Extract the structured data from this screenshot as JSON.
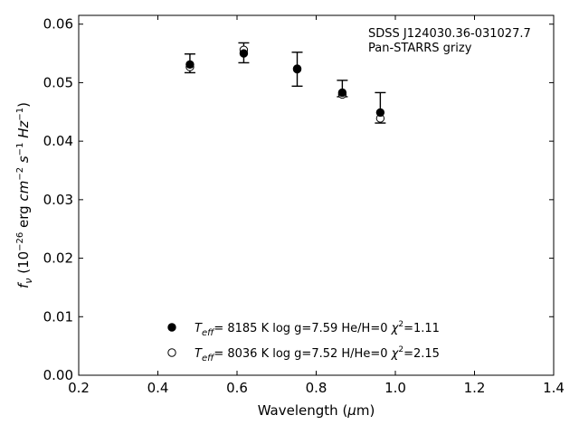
{
  "chart_data": {
    "type": "scatter",
    "xlabel": "Wavelength (μm)",
    "ylabel": "fν (10⁻²⁶ erg cm⁻² s⁻¹ Hz⁻¹)",
    "xlim": [
      0.2,
      1.4
    ],
    "ylim": [
      0.0,
      0.0615
    ],
    "xticks": [
      0.2,
      0.4,
      0.6,
      0.8,
      1.0,
      1.2,
      1.4
    ],
    "yticks": [
      0.0,
      0.01,
      0.02,
      0.03,
      0.04,
      0.05,
      0.06
    ],
    "xtick_labels": [
      "0.2",
      "0.4",
      "0.6",
      "0.8",
      "1.0",
      "1.2",
      "1.4"
    ],
    "ytick_labels": [
      "0.00",
      "0.01",
      "0.02",
      "0.03",
      "0.04",
      "0.05",
      "0.06"
    ],
    "grid": false,
    "annotations": [
      "SDSS J124030.36-031027.7",
      "Pan-STARRS grizy"
    ],
    "observed": {
      "x": [
        0.481,
        0.617,
        0.752,
        0.866,
        0.962
      ],
      "y": [
        0.0533,
        0.0551,
        0.0523,
        0.049,
        0.0457
      ],
      "yerr": [
        0.0016,
        0.0017,
        0.0029,
        0.0014,
        0.0026
      ]
    },
    "series": [
      {
        "name": "Teff= 8185 K log g=7.59 He/H=0 χ2=1.11",
        "marker": "filled-circle",
        "x": [
          0.481,
          0.617,
          0.752,
          0.866,
          0.962
        ],
        "y": [
          0.0531,
          0.055,
          0.0524,
          0.0483,
          0.0449
        ]
      },
      {
        "name": "Teff= 8036 K log g=7.52 H/He=0 χ2=2.15",
        "marker": "open-circle",
        "x": [
          0.481,
          0.617,
          0.752,
          0.866,
          0.962
        ],
        "y": [
          0.0527,
          0.0556,
          0.0523,
          0.048,
          0.0439
        ]
      }
    ],
    "legend": [
      {
        "marker": "filled-circle",
        "teff": "8185",
        "logg": "7.59",
        "comp": "He/H=0",
        "chi2": "1.11"
      },
      {
        "marker": "open-circle",
        "teff": "8036",
        "logg": "7.52",
        "comp": "H/He=0",
        "chi2": "2.15"
      }
    ],
    "legend_position": "bottom-center",
    "colors": {
      "marker": "#000000",
      "axis": "#000000"
    }
  }
}
